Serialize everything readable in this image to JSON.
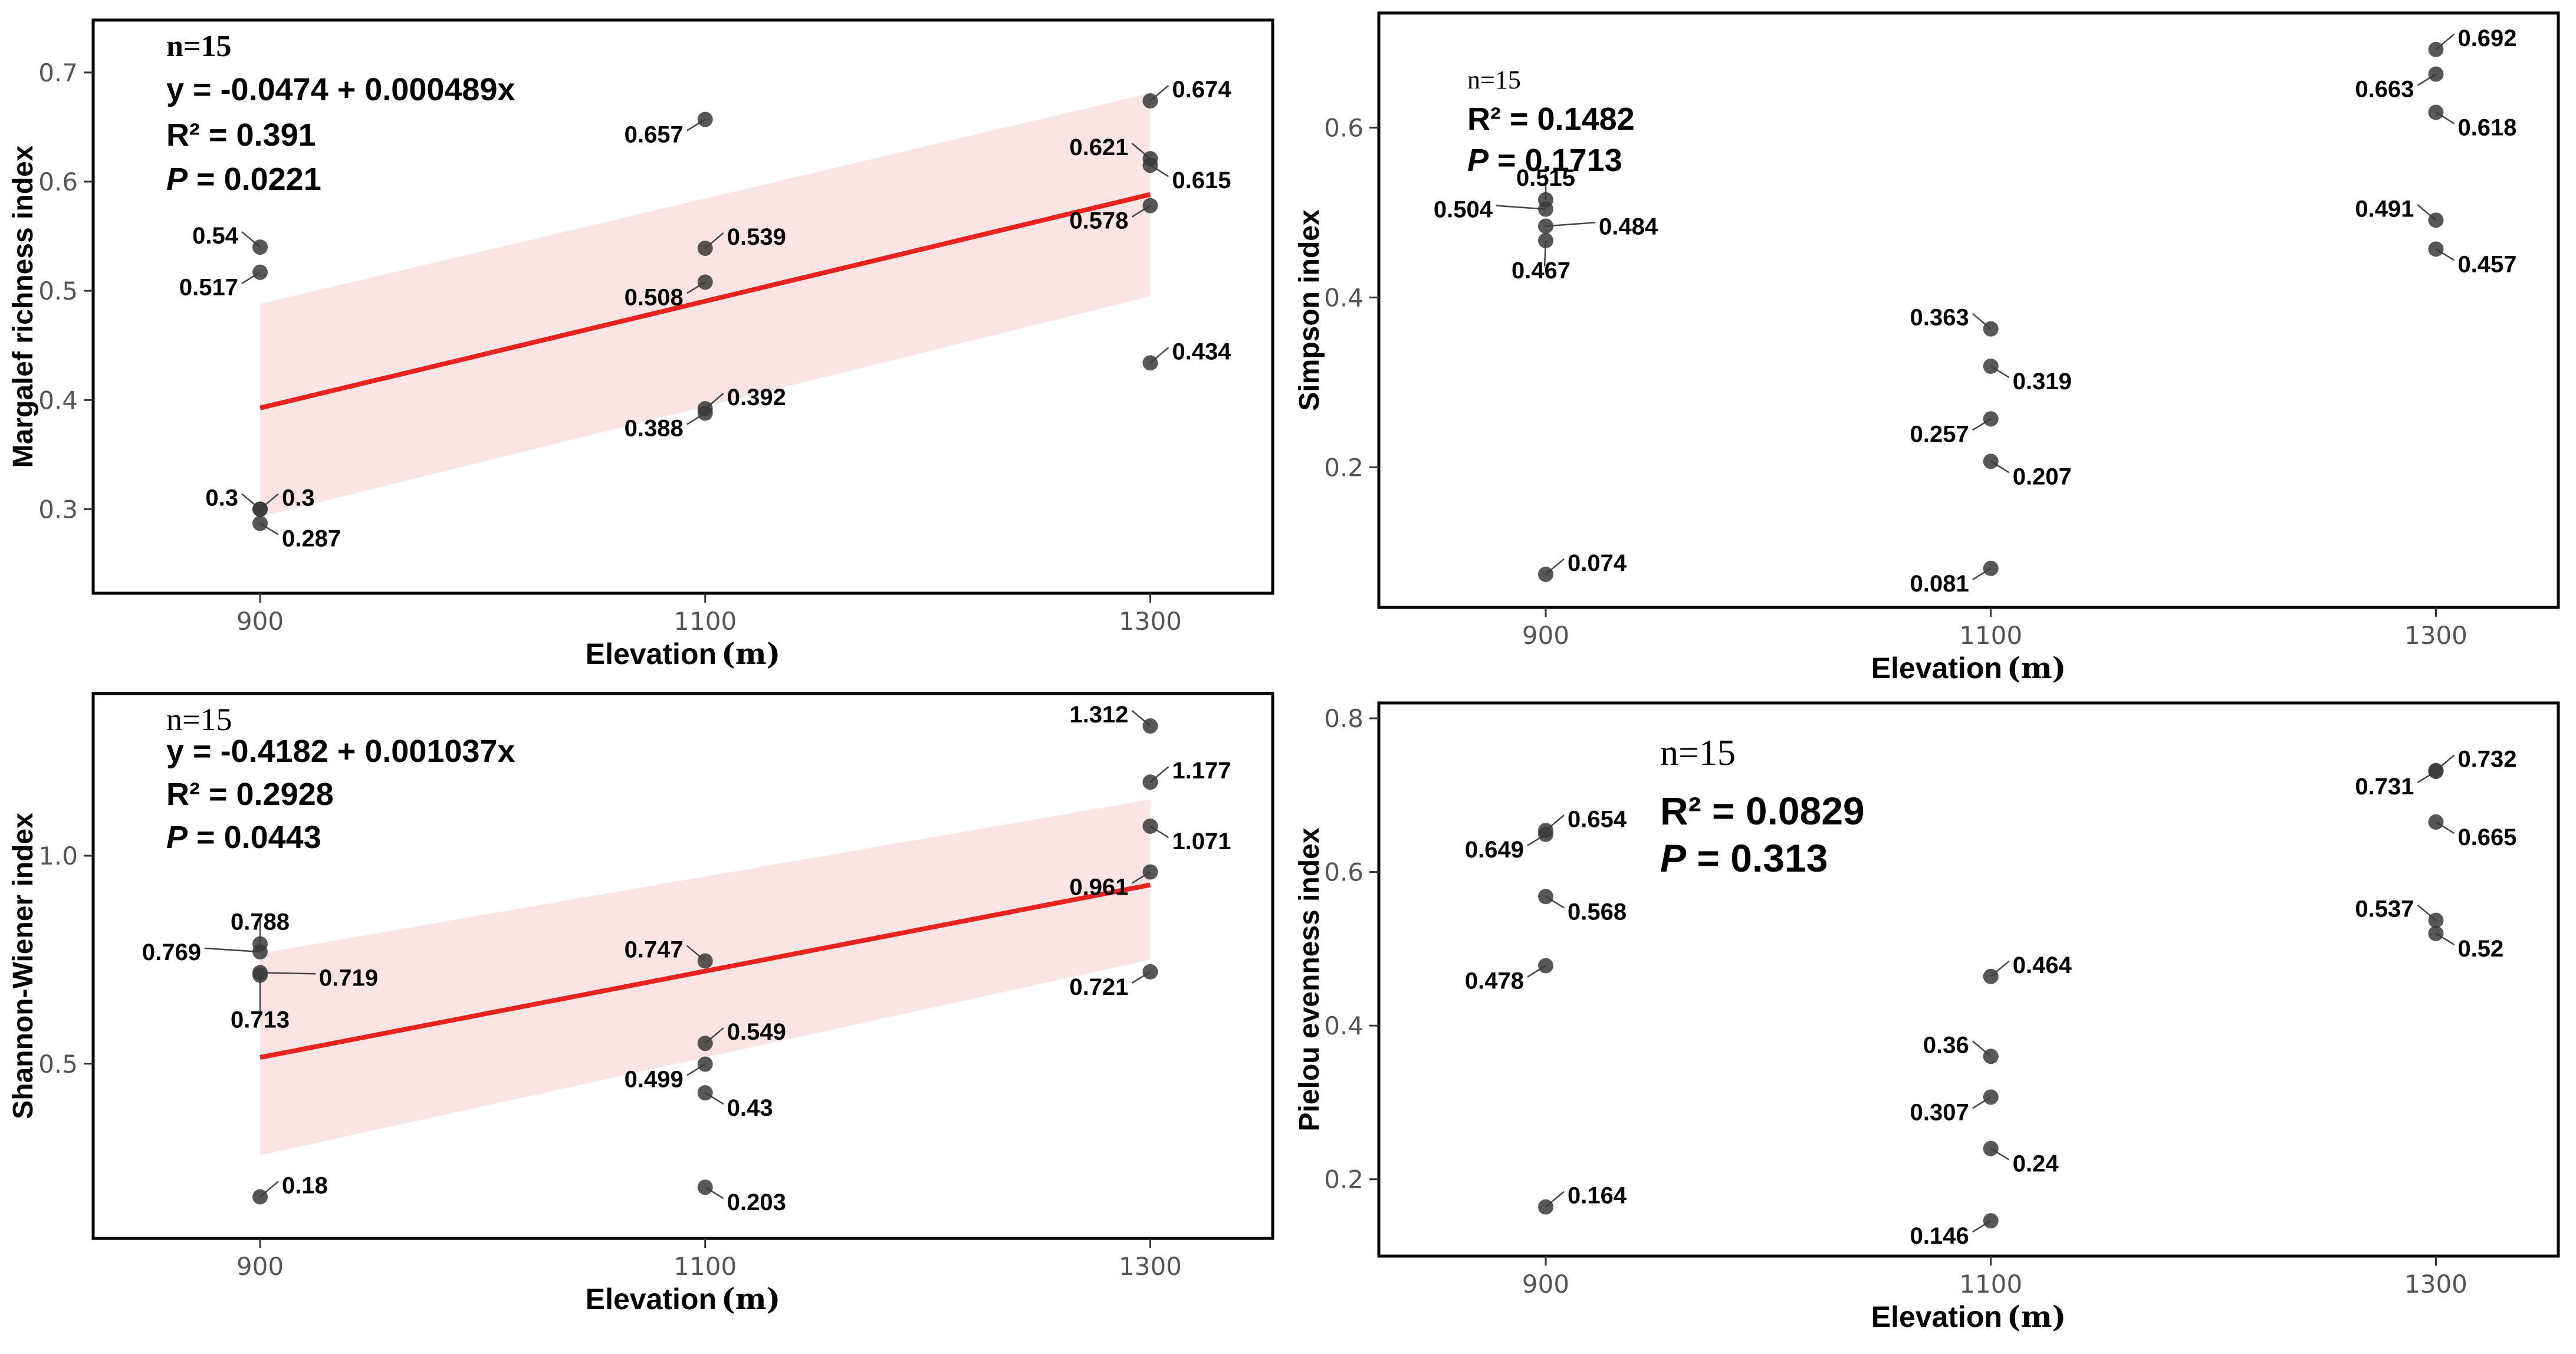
{
  "chart_data": [
    {
      "type": "scatter",
      "panel": "top-left",
      "ylabel": "Margalef richness index",
      "xlabel": "Elevation",
      "xunit": "(m)",
      "xlim": [
        825,
        1355
      ],
      "ylim": [
        0.223,
        0.748
      ],
      "xticks": [
        900,
        1100,
        1300
      ],
      "xtick_labels": [
        "900",
        "1100",
        "1300"
      ],
      "yticks": [
        0.3,
        0.4,
        0.5,
        0.6,
        0.7
      ],
      "ytick_labels": [
        "0.3",
        "0.4",
        "0.5",
        "0.6",
        "0.7"
      ],
      "stats": {
        "n": "n=15",
        "equation": "y = -0.0474 + 0.000489x",
        "r2": "R² = 0.391",
        "p_symbol": "P",
        "p_value": " = 0.0221"
      },
      "regression": {
        "intercept": -0.0474,
        "slope": 0.000489,
        "ci_low": [
          0.293,
          0.495
        ],
        "ci_high": [
          0.488,
          0.681
        ]
      },
      "points": [
        {
          "x": 900,
          "y": 0.54,
          "label": "0.54",
          "dx": -37,
          "dy": -20,
          "anchor": "end"
        },
        {
          "x": 900,
          "y": 0.517,
          "label": "0.517",
          "dx": -37,
          "dy": 25,
          "anchor": "end"
        },
        {
          "x": 900,
          "y": 0.3,
          "label": "0.3",
          "dx": -37,
          "dy": -20,
          "anchor": "end"
        },
        {
          "x": 900,
          "y": 0.3,
          "label": "0.3",
          "dx": 37,
          "dy": -20,
          "anchor": "start"
        },
        {
          "x": 900,
          "y": 0.287,
          "label": "0.287",
          "dx": 37,
          "dy": 25,
          "anchor": "start"
        },
        {
          "x": 1100,
          "y": 0.657,
          "label": "0.657",
          "dx": -37,
          "dy": 25,
          "anchor": "end"
        },
        {
          "x": 1100,
          "y": 0.539,
          "label": "0.539",
          "dx": 37,
          "dy": -20,
          "anchor": "start"
        },
        {
          "x": 1100,
          "y": 0.508,
          "label": "0.508",
          "dx": -37,
          "dy": 25,
          "anchor": "end"
        },
        {
          "x": 1100,
          "y": 0.392,
          "label": "0.392",
          "dx": 37,
          "dy": -20,
          "anchor": "start"
        },
        {
          "x": 1100,
          "y": 0.388,
          "label": "0.388",
          "dx": -37,
          "dy": 25,
          "anchor": "end"
        },
        {
          "x": 1300,
          "y": 0.674,
          "label": "0.674",
          "dx": 37,
          "dy": -20,
          "anchor": "start"
        },
        {
          "x": 1300,
          "y": 0.621,
          "label": "0.621",
          "dx": -37,
          "dy": -20,
          "anchor": "end"
        },
        {
          "x": 1300,
          "y": 0.615,
          "label": "0.615",
          "dx": 37,
          "dy": 25,
          "anchor": "start"
        },
        {
          "x": 1300,
          "y": 0.578,
          "label": "0.578",
          "dx": -37,
          "dy": 25,
          "anchor": "end"
        },
        {
          "x": 1300,
          "y": 0.434,
          "label": "0.434",
          "dx": 37,
          "dy": -20,
          "anchor": "start"
        }
      ]
    },
    {
      "type": "scatter",
      "panel": "top-right",
      "ylabel": "Simpson index",
      "xlabel": "Elevation",
      "xunit": "(m)",
      "xlim": [
        825,
        1355
      ],
      "ylim": [
        0.035,
        0.735
      ],
      "xticks": [
        900,
        1100,
        1300
      ],
      "xtick_labels": [
        "900",
        "1100",
        "1300"
      ],
      "yticks": [
        0.2,
        0.4,
        0.6
      ],
      "ytick_labels": [
        "0.2",
        "0.4",
        "0.6"
      ],
      "stats": {
        "n": "n=15",
        "equation": "",
        "r2": "R² = 0.1482",
        "p_symbol": "P",
        "p_value": " = 0.1713"
      },
      "regression": null,
      "points": [
        {
          "x": 900,
          "y": 0.515,
          "label": "0.515",
          "dx": 0,
          "dy": -38,
          "anchor": "middle"
        },
        {
          "x": 900,
          "y": 0.504,
          "label": "0.504",
          "dx": -90,
          "dy": 0,
          "anchor": "end"
        },
        {
          "x": 900,
          "y": 0.484,
          "label": "0.484",
          "dx": 90,
          "dy": 0,
          "anchor": "start"
        },
        {
          "x": 900,
          "y": 0.467,
          "label": "0.467",
          "dx": -8,
          "dy": 50,
          "anchor": "middle"
        },
        {
          "x": 900,
          "y": 0.074,
          "label": "0.074",
          "dx": 37,
          "dy": -20,
          "anchor": "start"
        },
        {
          "x": 1100,
          "y": 0.363,
          "label": "0.363",
          "dx": -37,
          "dy": -20,
          "anchor": "end"
        },
        {
          "x": 1100,
          "y": 0.319,
          "label": "0.319",
          "dx": 37,
          "dy": 25,
          "anchor": "start"
        },
        {
          "x": 1100,
          "y": 0.257,
          "label": "0.257",
          "dx": -37,
          "dy": 25,
          "anchor": "end"
        },
        {
          "x": 1100,
          "y": 0.207,
          "label": "0.207",
          "dx": 37,
          "dy": 25,
          "anchor": "start"
        },
        {
          "x": 1100,
          "y": 0.081,
          "label": "0.081",
          "dx": -37,
          "dy": 25,
          "anchor": "end"
        },
        {
          "x": 1300,
          "y": 0.692,
          "label": "0.692",
          "dx": 37,
          "dy": -20,
          "anchor": "start"
        },
        {
          "x": 1300,
          "y": 0.663,
          "label": "0.663",
          "dx": -37,
          "dy": 25,
          "anchor": "end"
        },
        {
          "x": 1300,
          "y": 0.618,
          "label": "0.618",
          "dx": 37,
          "dy": 25,
          "anchor": "start"
        },
        {
          "x": 1300,
          "y": 0.491,
          "label": "0.491",
          "dx": -37,
          "dy": -20,
          "anchor": "end"
        },
        {
          "x": 1300,
          "y": 0.457,
          "label": "0.457",
          "dx": 37,
          "dy": 25,
          "anchor": "start"
        }
      ]
    },
    {
      "type": "scatter",
      "panel": "bottom-left",
      "ylabel": "Shannon-Wiener index",
      "xlabel": "Elevation",
      "xunit": "(m)",
      "xlim": [
        825,
        1355
      ],
      "ylim": [
        0.08,
        1.39
      ],
      "xticks": [
        900,
        1100,
        1300
      ],
      "xtick_labels": [
        "900",
        "1100",
        "1300"
      ],
      "yticks": [
        0.5,
        1.0
      ],
      "ytick_labels": [
        "0.5",
        "1.0"
      ],
      "stats": {
        "n": "n=15",
        "equation": "y = -0.4182 + 0.001037x",
        "r2": "R² = 0.2928",
        "p_symbol": "P",
        "p_value": " = 0.0443"
      },
      "regression": {
        "intercept": -0.4182,
        "slope": 0.001037,
        "ci_low": [
          0.28,
          0.75
        ],
        "ci_high": [
          0.765,
          1.135
        ]
      },
      "points": [
        {
          "x": 900,
          "y": 0.788,
          "label": "0.788",
          "dx": 0,
          "dy": -38,
          "anchor": "middle"
        },
        {
          "x": 900,
          "y": 0.769,
          "label": "0.769",
          "dx": -100,
          "dy": 0,
          "anchor": "end"
        },
        {
          "x": 900,
          "y": 0.719,
          "label": "0.719",
          "dx": 100,
          "dy": 8,
          "anchor": "start"
        },
        {
          "x": 900,
          "y": 0.713,
          "label": "0.713",
          "dx": 0,
          "dy": 75,
          "anchor": "middle"
        },
        {
          "x": 900,
          "y": 0.18,
          "label": "0.18",
          "dx": 37,
          "dy": -20,
          "anchor": "start"
        },
        {
          "x": 1100,
          "y": 0.747,
          "label": "0.747",
          "dx": -37,
          "dy": -20,
          "anchor": "end"
        },
        {
          "x": 1100,
          "y": 0.549,
          "label": "0.549",
          "dx": 37,
          "dy": -20,
          "anchor": "start"
        },
        {
          "x": 1100,
          "y": 0.499,
          "label": "0.499",
          "dx": -37,
          "dy": 25,
          "anchor": "end"
        },
        {
          "x": 1100,
          "y": 0.43,
          "label": "0.43",
          "dx": 37,
          "dy": 25,
          "anchor": "start"
        },
        {
          "x": 1100,
          "y": 0.203,
          "label": "0.203",
          "dx": 37,
          "dy": 25,
          "anchor": "start"
        },
        {
          "x": 1300,
          "y": 1.312,
          "label": "1.312",
          "dx": -37,
          "dy": -20,
          "anchor": "end"
        },
        {
          "x": 1300,
          "y": 1.177,
          "label": "1.177",
          "dx": 37,
          "dy": -20,
          "anchor": "start"
        },
        {
          "x": 1300,
          "y": 1.071,
          "label": "1.071",
          "dx": 37,
          "dy": 25,
          "anchor": "start"
        },
        {
          "x": 1300,
          "y": 0.961,
          "label": "0.961",
          "dx": -37,
          "dy": 25,
          "anchor": "end"
        },
        {
          "x": 1300,
          "y": 0.721,
          "label": "0.721",
          "dx": -37,
          "dy": 25,
          "anchor": "end"
        }
      ]
    },
    {
      "type": "scatter",
      "panel": "bottom-right",
      "ylabel": "Pielou evenness index",
      "xlabel": "Elevation",
      "xunit": "(m)",
      "xlim": [
        825,
        1355
      ],
      "ylim": [
        0.1,
        0.82
      ],
      "xticks": [
        900,
        1100,
        1300
      ],
      "xtick_labels": [
        "900",
        "1100",
        "1300"
      ],
      "yticks": [
        0.2,
        0.4,
        0.6,
        0.8
      ],
      "ytick_labels": [
        "0.2",
        "0.4",
        "0.6",
        "0.8"
      ],
      "stats": {
        "n": "n=15",
        "equation": "",
        "r2": "R² = 0.0829",
        "p_symbol": "P",
        "p_value": " = 0.313"
      },
      "regression": null,
      "points": [
        {
          "x": 900,
          "y": 0.654,
          "label": "0.654",
          "dx": 37,
          "dy": -20,
          "anchor": "start"
        },
        {
          "x": 900,
          "y": 0.649,
          "label": "0.649",
          "dx": -37,
          "dy": 25,
          "anchor": "end"
        },
        {
          "x": 900,
          "y": 0.568,
          "label": "0.568",
          "dx": 37,
          "dy": 25,
          "anchor": "start"
        },
        {
          "x": 900,
          "y": 0.478,
          "label": "0.478",
          "dx": -37,
          "dy": 25,
          "anchor": "end"
        },
        {
          "x": 900,
          "y": 0.164,
          "label": "0.164",
          "dx": 37,
          "dy": -20,
          "anchor": "start"
        },
        {
          "x": 1100,
          "y": 0.464,
          "label": "0.464",
          "dx": 37,
          "dy": -20,
          "anchor": "start"
        },
        {
          "x": 1100,
          "y": 0.36,
          "label": "0.36",
          "dx": -37,
          "dy": -20,
          "anchor": "end"
        },
        {
          "x": 1100,
          "y": 0.307,
          "label": "0.307",
          "dx": -37,
          "dy": 25,
          "anchor": "end"
        },
        {
          "x": 1100,
          "y": 0.24,
          "label": "0.24",
          "dx": 37,
          "dy": 25,
          "anchor": "start"
        },
        {
          "x": 1100,
          "y": 0.146,
          "label": "0.146",
          "dx": -37,
          "dy": 25,
          "anchor": "end"
        },
        {
          "x": 1300,
          "y": 0.732,
          "label": "0.732",
          "dx": 37,
          "dy": -20,
          "anchor": "start"
        },
        {
          "x": 1300,
          "y": 0.731,
          "label": "0.731",
          "dx": -37,
          "dy": 25,
          "anchor": "end"
        },
        {
          "x": 1300,
          "y": 0.665,
          "label": "0.665",
          "dx": 37,
          "dy": 25,
          "anchor": "start"
        },
        {
          "x": 1300,
          "y": 0.537,
          "label": "0.537",
          "dx": -37,
          "dy": -20,
          "anchor": "end"
        },
        {
          "x": 1300,
          "y": 0.52,
          "label": "0.52",
          "dx": 37,
          "dy": 25,
          "anchor": "start"
        }
      ]
    }
  ]
}
